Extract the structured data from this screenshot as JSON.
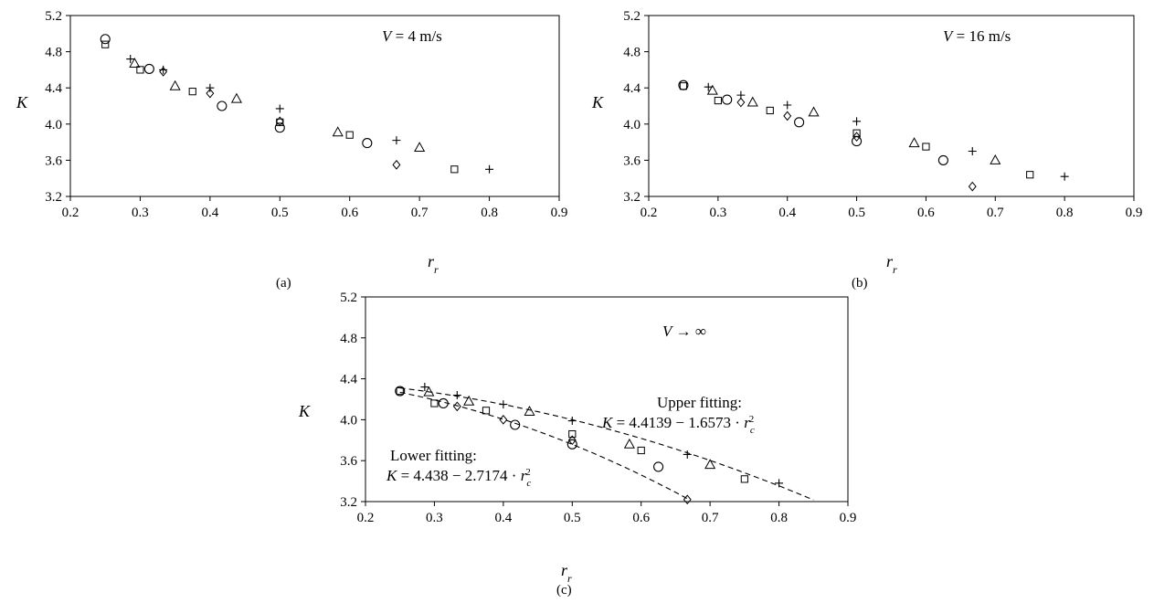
{
  "colors": {
    "marker": "#000000",
    "axis": "#000000",
    "background": "#ffffff"
  },
  "chart_data": [
    {
      "type": "scatter",
      "panel_label": "(a)",
      "annotation": "V = 4 m/s",
      "ylabel": "K",
      "xlabel": "r_r",
      "xlim": [
        0.2,
        0.9
      ],
      "ylim": [
        3.2,
        5.2
      ],
      "xticks": [
        "0.2",
        "0.3",
        "0.4",
        "0.5",
        "0.6",
        "0.7",
        "0.8",
        "0.9"
      ],
      "yticks": [
        "3.2",
        "3.6",
        "4.0",
        "4.4",
        "4.8",
        "5.2"
      ],
      "grid": false,
      "series": [
        {
          "marker": "circle",
          "points": [
            [
              0.25,
              4.94
            ],
            [
              0.313,
              4.61
            ],
            [
              0.417,
              4.2
            ],
            [
              0.5,
              3.96
            ],
            [
              0.625,
              3.79
            ]
          ]
        },
        {
          "marker": "square",
          "points": [
            [
              0.25,
              4.88
            ],
            [
              0.3,
              4.6
            ],
            [
              0.375,
              4.36
            ],
            [
              0.5,
              4.02
            ],
            [
              0.6,
              3.88
            ],
            [
              0.75,
              3.5
            ]
          ]
        },
        {
          "marker": "triangle",
          "points": [
            [
              0.292,
              4.67
            ],
            [
              0.35,
              4.42
            ],
            [
              0.438,
              4.28
            ],
            [
              0.583,
              3.91
            ],
            [
              0.7,
              3.74
            ]
          ]
        },
        {
          "marker": "diamond",
          "points": [
            [
              0.333,
              4.58
            ],
            [
              0.4,
              4.34
            ],
            [
              0.5,
              4.03
            ],
            [
              0.667,
              3.55
            ]
          ]
        },
        {
          "marker": "plus",
          "points": [
            [
              0.286,
              4.72
            ],
            [
              0.333,
              4.6
            ],
            [
              0.4,
              4.4
            ],
            [
              0.5,
              4.17
            ],
            [
              0.667,
              3.82
            ],
            [
              0.8,
              3.5
            ]
          ]
        }
      ]
    },
    {
      "type": "scatter",
      "panel_label": "(b)",
      "annotation": "V = 16 m/s",
      "ylabel": "K",
      "xlabel": "r_r",
      "xlim": [
        0.2,
        0.9
      ],
      "ylim": [
        3.2,
        5.2
      ],
      "xticks": [
        "0.2",
        "0.3",
        "0.4",
        "0.5",
        "0.6",
        "0.7",
        "0.8",
        "0.9"
      ],
      "yticks": [
        "3.2",
        "3.6",
        "4.0",
        "4.4",
        "4.8",
        "5.2"
      ],
      "grid": false,
      "series": [
        {
          "marker": "circle",
          "points": [
            [
              0.25,
              4.43
            ],
            [
              0.313,
              4.27
            ],
            [
              0.417,
              4.02
            ],
            [
              0.5,
              3.81
            ],
            [
              0.625,
              3.6
            ]
          ]
        },
        {
          "marker": "square",
          "points": [
            [
              0.25,
              4.42
            ],
            [
              0.3,
              4.26
            ],
            [
              0.375,
              4.15
            ],
            [
              0.5,
              3.9
            ],
            [
              0.6,
              3.75
            ],
            [
              0.75,
              3.44
            ]
          ]
        },
        {
          "marker": "triangle",
          "points": [
            [
              0.292,
              4.37
            ],
            [
              0.35,
              4.24
            ],
            [
              0.438,
              4.13
            ],
            [
              0.583,
              3.79
            ],
            [
              0.7,
              3.6
            ]
          ]
        },
        {
          "marker": "diamond",
          "points": [
            [
              0.333,
              4.24
            ],
            [
              0.4,
              4.09
            ],
            [
              0.5,
              3.86
            ],
            [
              0.667,
              3.31
            ]
          ]
        },
        {
          "marker": "plus",
          "points": [
            [
              0.286,
              4.41
            ],
            [
              0.333,
              4.32
            ],
            [
              0.4,
              4.21
            ],
            [
              0.5,
              4.03
            ],
            [
              0.667,
              3.7
            ],
            [
              0.8,
              3.42
            ]
          ]
        }
      ]
    },
    {
      "type": "scatter",
      "panel_label": "(c)",
      "annotation": "V → ∞",
      "ylabel": "K",
      "xlabel": "r_r",
      "xlim": [
        0.2,
        0.9
      ],
      "ylim": [
        3.2,
        5.2
      ],
      "xticks": [
        "0.2",
        "0.3",
        "0.4",
        "0.5",
        "0.6",
        "0.7",
        "0.8",
        "0.9"
      ],
      "yticks": [
        "3.2",
        "3.6",
        "4.0",
        "4.4",
        "4.8",
        "5.2"
      ],
      "grid": false,
      "series": [
        {
          "marker": "circle",
          "points": [
            [
              0.25,
              4.28
            ],
            [
              0.313,
              4.16
            ],
            [
              0.417,
              3.95
            ],
            [
              0.5,
              3.76
            ],
            [
              0.625,
              3.54
            ]
          ]
        },
        {
          "marker": "square",
          "points": [
            [
              0.25,
              4.28
            ],
            [
              0.3,
              4.16
            ],
            [
              0.375,
              4.09
            ],
            [
              0.5,
              3.86
            ],
            [
              0.6,
              3.7
            ],
            [
              0.75,
              3.42
            ]
          ]
        },
        {
          "marker": "triangle",
          "points": [
            [
              0.292,
              4.27
            ],
            [
              0.35,
              4.18
            ],
            [
              0.438,
              4.08
            ],
            [
              0.583,
              3.76
            ],
            [
              0.7,
              3.56
            ]
          ]
        },
        {
          "marker": "diamond",
          "points": [
            [
              0.333,
              4.13
            ],
            [
              0.4,
              4.0
            ],
            [
              0.5,
              3.8
            ],
            [
              0.667,
              3.22
            ]
          ]
        },
        {
          "marker": "plus",
          "points": [
            [
              0.286,
              4.32
            ],
            [
              0.333,
              4.24
            ],
            [
              0.4,
              4.15
            ],
            [
              0.5,
              3.99
            ],
            [
              0.667,
              3.66
            ],
            [
              0.8,
              3.38
            ]
          ]
        }
      ],
      "fits": [
        {
          "name": "Upper fitting",
          "equation": "K = 4.4139 − 1.6573 · r_c^2",
          "a": 4.4139,
          "b": -1.6573,
          "xrange": [
            0.25,
            0.85
          ]
        },
        {
          "name": "Lower fitting",
          "equation": "K = 4.438 − 2.7174 · r_c^2",
          "a": 4.438,
          "b": -2.7174,
          "xrange": [
            0.25,
            0.67
          ]
        }
      ]
    }
  ]
}
